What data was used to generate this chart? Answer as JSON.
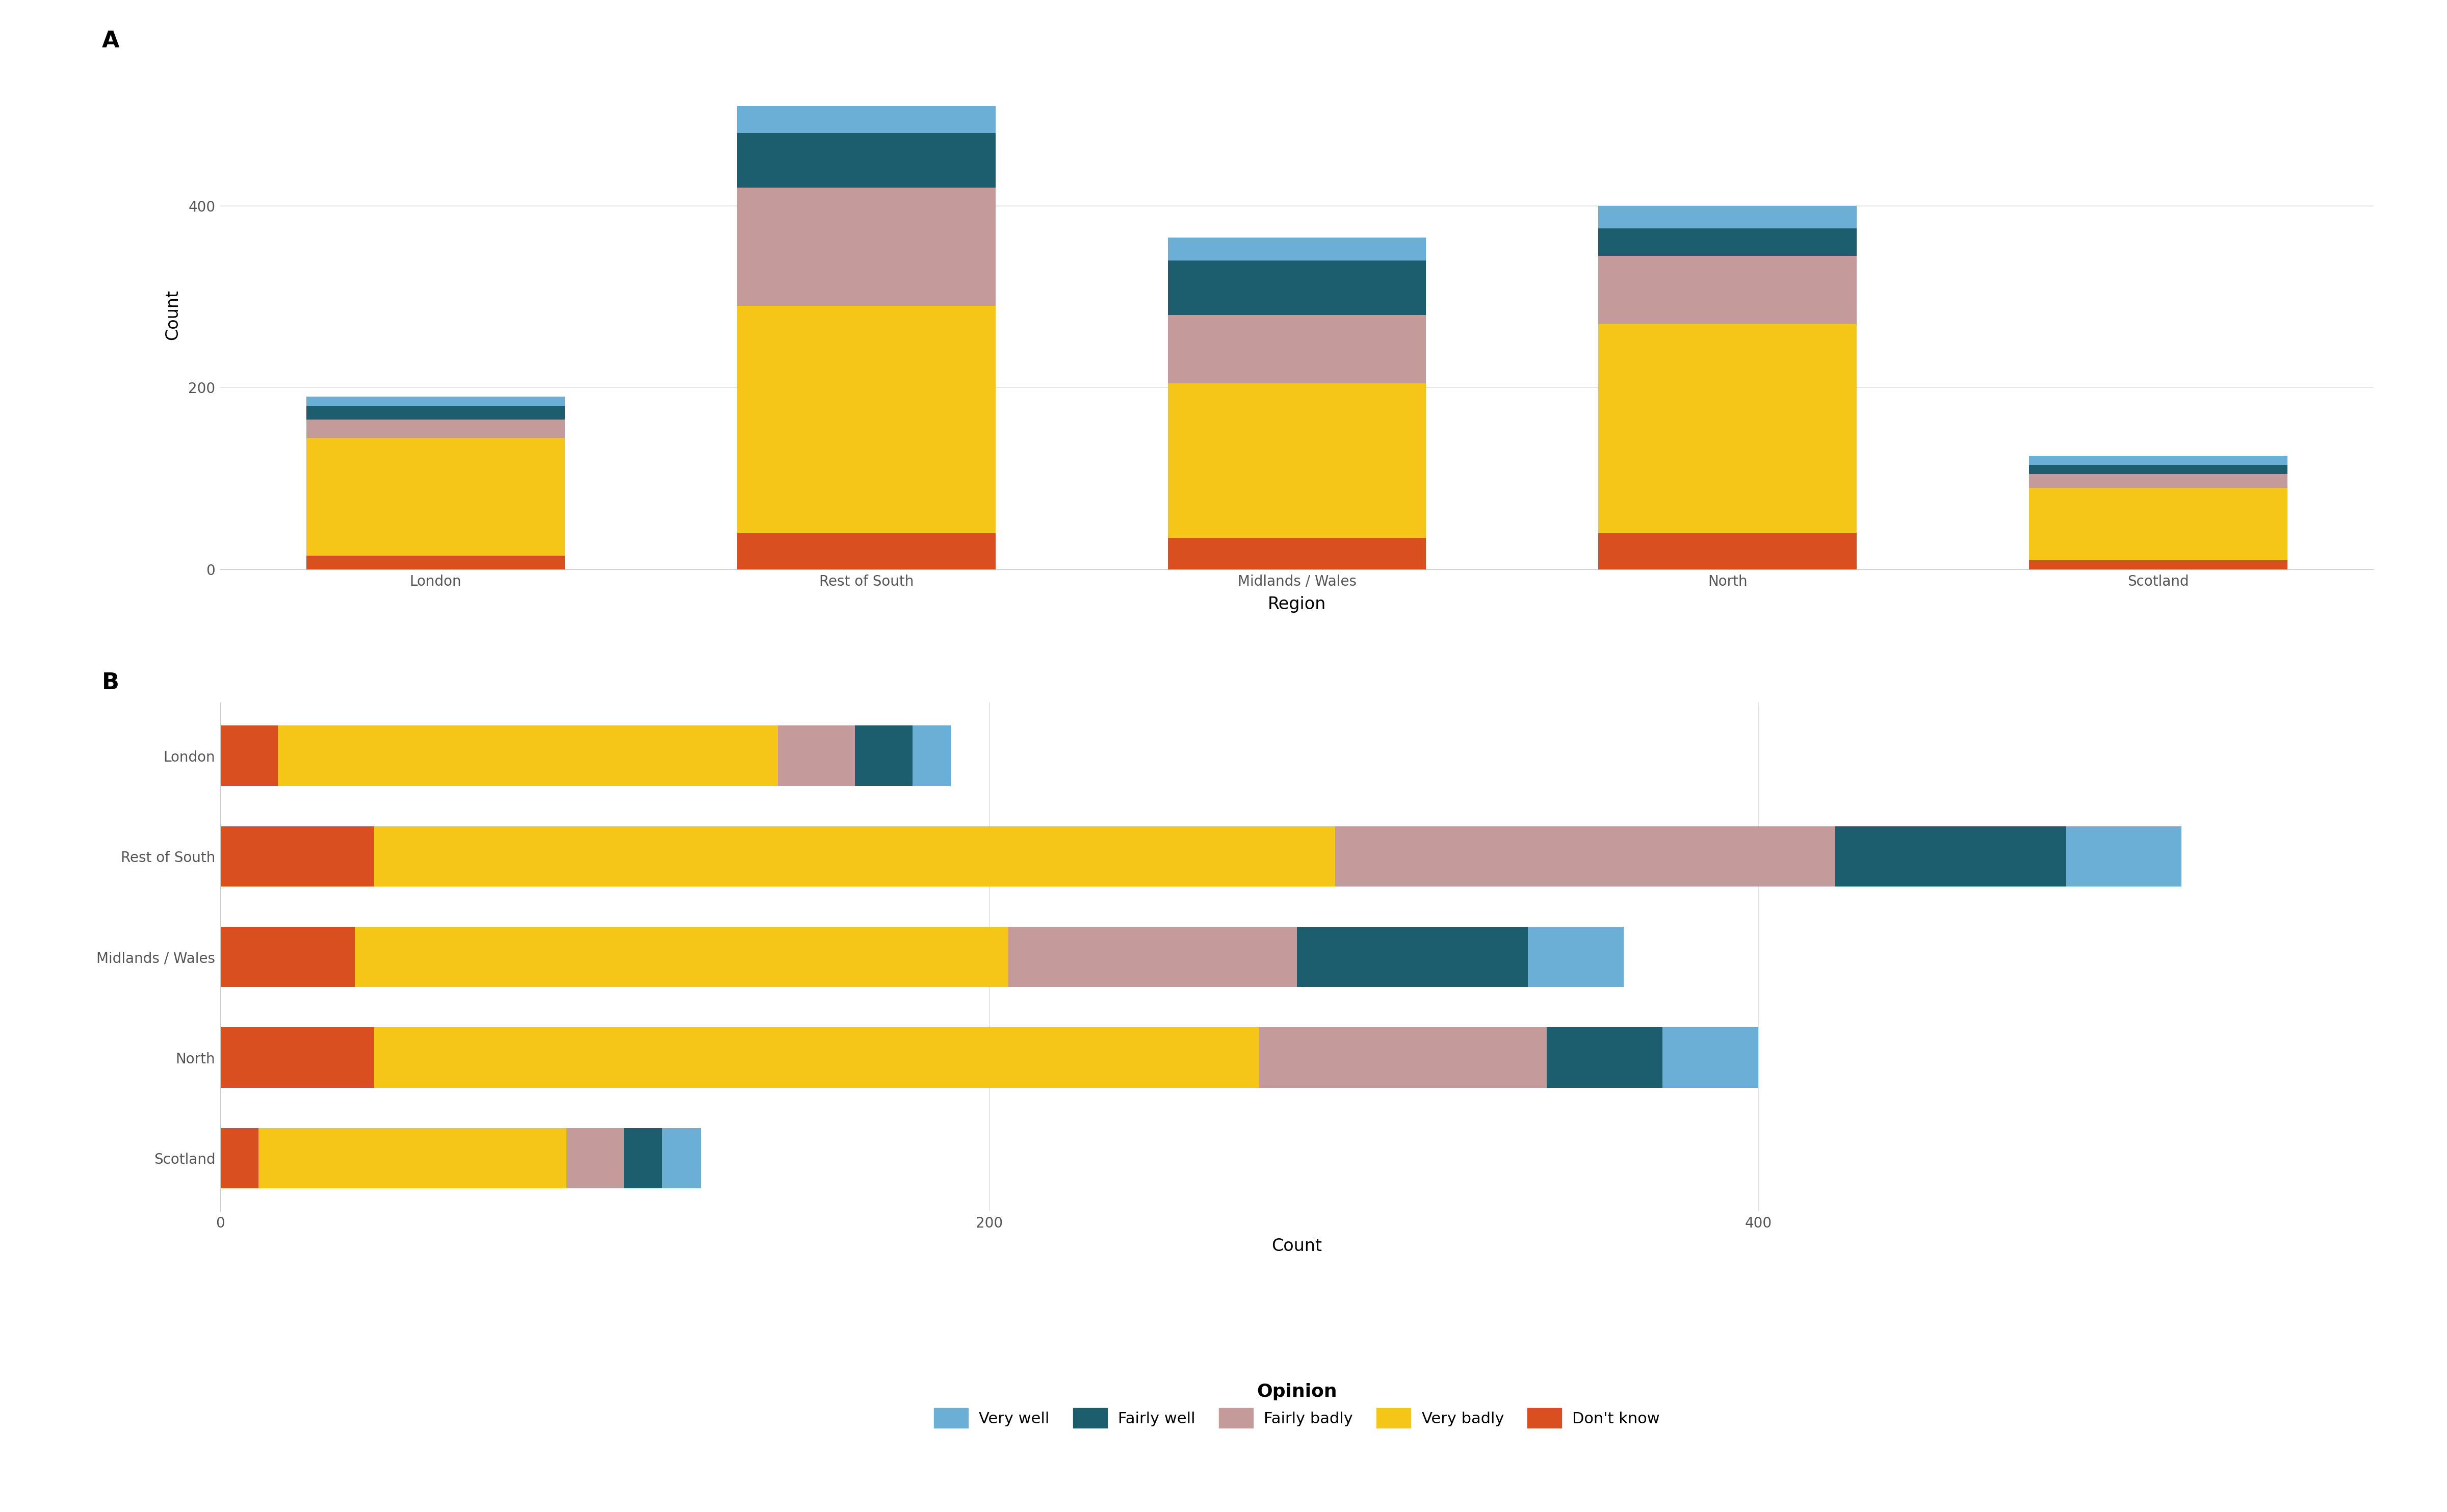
{
  "regions": [
    "London",
    "Rest of South",
    "Midlands / Wales",
    "North",
    "Scotland"
  ],
  "opinions_stack_order": [
    "Don't know",
    "Very badly",
    "Fairly badly",
    "Fairly well",
    "Very well"
  ],
  "opinions_legend_order": [
    "Very well",
    "Fairly well",
    "Fairly badly",
    "Very badly",
    "Don't know"
  ],
  "colors": {
    "Very well": "#6BAED6",
    "Fairly well": "#1C5E6E",
    "Fairly badly": "#C49A9A",
    "Very badly": "#F5C518",
    "Don't know": "#D94F20"
  },
  "data": {
    "London": {
      "Very well": 10,
      "Fairly well": 15,
      "Fairly badly": 20,
      "Very badly": 130,
      "Don't know": 15
    },
    "Rest of South": {
      "Very well": 30,
      "Fairly well": 60,
      "Fairly badly": 130,
      "Very badly": 250,
      "Don't know": 40
    },
    "Midlands / Wales": {
      "Very well": 25,
      "Fairly well": 60,
      "Fairly badly": 75,
      "Very badly": 170,
      "Don't know": 35
    },
    "North": {
      "Very well": 25,
      "Fairly well": 30,
      "Fairly badly": 75,
      "Very badly": 230,
      "Don't know": 40
    },
    "Scotland": {
      "Very well": 10,
      "Fairly well": 10,
      "Fairly badly": 15,
      "Very badly": 80,
      "Don't know": 10
    }
  },
  "background_color": "#FFFFFF",
  "panel_bg": "#FFFFFF",
  "grid_color": "#E0E0E0",
  "label_color": "#555555",
  "panel_label_fontsize": 32,
  "axis_label_fontsize": 24,
  "tick_label_fontsize": 20,
  "legend_fontsize": 22,
  "legend_title_fontsize": 26
}
